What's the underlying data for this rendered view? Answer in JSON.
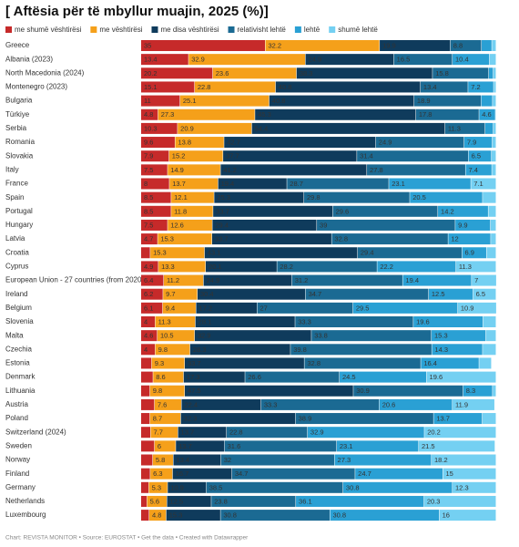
{
  "chart_data": {
    "type": "stacked-bar-horizontal",
    "title": "[ Aftësia për të mbyllur muajin, 2025 (%)]",
    "footer": "Chart: REVISTA MONITOR • Source: EUROSTAT • Get the data • Created with Datawrapper",
    "xlim": [
      0,
      100
    ],
    "categories": [
      "Greece",
      "Albania (2023)",
      "North Macedonia (2024)",
      "Montenegro (2023)",
      "Bulgaria",
      "Türkiye",
      "Serbia",
      "Romania",
      "Slovakia",
      "Italy",
      "France",
      "Spain",
      "Portugal",
      "Hungary",
      "Latvia",
      "Croatia",
      "Cyprus",
      "European Union - 27 countries (from 2020)",
      "Ireland",
      "Belgium",
      "Slovenia",
      "Malta",
      "Czechia",
      "Estonia",
      "Denmark",
      "Lithuania",
      "Austria",
      "Poland",
      "Switzerland (2024)",
      "Sweden",
      "Norway",
      "Finland",
      "Germany",
      "Netherlands",
      "Luxembourg"
    ],
    "series": [
      {
        "name": "me shumë vështirësi",
        "color": "#c62a2a",
        "values": [
          35,
          13.4,
          20.2,
          15.1,
          11,
          4.8,
          10.3,
          9.6,
          7.9,
          7.5,
          8,
          8.5,
          8.5,
          7.5,
          4.7,
          2.6,
          4.9,
          6.4,
          6.2,
          6.1,
          4,
          4.6,
          4,
          3,
          3.4,
          2.5,
          3.8,
          2.5,
          2.7,
          3.8,
          3.3,
          2.6,
          2.2,
          1.7,
          2.3
        ]
      },
      {
        "name": "me vështirësi",
        "color": "#f5a01a",
        "values": [
          32.2,
          32.9,
          23.6,
          22.8,
          25.1,
          27.3,
          20.9,
          13.8,
          15.2,
          14.9,
          13.7,
          12.1,
          11.8,
          12.6,
          15.3,
          15.3,
          13.3,
          11.2,
          9.7,
          9.4,
          11.3,
          10.5,
          9.8,
          9.3,
          8.6,
          9.8,
          7.6,
          8.7,
          7.7,
          6,
          5.8,
          6.3,
          5.3,
          5.6,
          4.8
        ]
      },
      {
        "name": "me disa vështirësi",
        "color": "#0f3b5c",
        "values": [
          19.9,
          24.9,
          38.3,
          40.8,
          40.8,
          45.3,
          54.4,
          42.7,
          37.7,
          41.2,
          19.4,
          25.3,
          33.7,
          29.4,
          33.7,
          43.1,
          20.1,
          24.9,
          30.4,
          17.2,
          28.1,
          32.9,
          28.3,
          33.7,
          17.3,
          47.5,
          22.4,
          32.3,
          13.7,
          13.7,
          13.4,
          16.7,
          10.9,
          12.5,
          15.3
        ]
      },
      {
        "name": "relativisht lehtë",
        "color": "#1b6a93",
        "values": [
          8.8,
          16.5,
          15.8,
          13.4,
          18.9,
          17.8,
          11.3,
          24.9,
          31.4,
          27.8,
          28.7,
          29.8,
          29.6,
          39,
          32.8,
          29.4,
          28.2,
          31.2,
          34.7,
          27,
          33.3,
          33.8,
          39.8,
          32.8,
          26.6,
          30.9,
          33.3,
          38.9,
          22.8,
          31.6,
          32,
          34.7,
          38.5,
          23.8,
          30.8
        ]
      },
      {
        "name": "lehtë",
        "color": "#2aa0d4",
        "values": [
          2.9,
          10.4,
          1.3,
          7.2,
          3.2,
          4.6,
          2.3,
          7.9,
          6.5,
          7.4,
          23.1,
          20.5,
          14.2,
          9.9,
          12,
          6.9,
          22.2,
          19.4,
          12.5,
          29.5,
          19.6,
          15.3,
          14.3,
          16.4,
          24.5,
          8.3,
          20.6,
          13.7,
          32.9,
          23.1,
          27.3,
          24.7,
          30.8,
          36.1,
          30.8
        ]
      },
      {
        "name": "shumë lehtë",
        "color": "#74d0f2",
        "values": [
          1.2,
          1.9,
          0.8,
          0.7,
          1,
          0.2,
          0.8,
          1.1,
          1.3,
          1.2,
          7.1,
          3.8,
          2.2,
          1.6,
          1.5,
          2.7,
          11.3,
          7,
          6.5,
          10.9,
          3.7,
          2.9,
          3.8,
          3.5,
          19.6,
          1,
          11.9,
          3.9,
          20.2,
          21.5,
          18.2,
          15,
          12.3,
          20.3,
          16
        ]
      }
    ]
  }
}
